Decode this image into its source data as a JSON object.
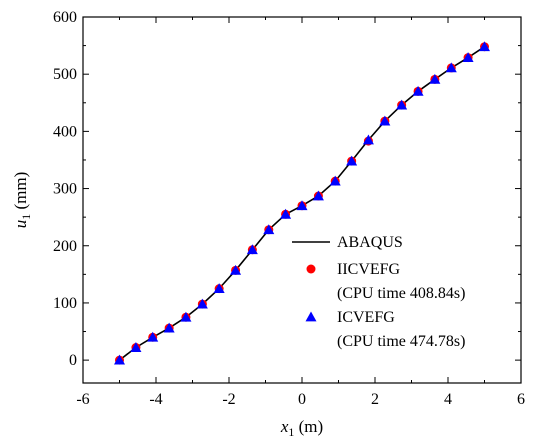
{
  "chart_data": {
    "type": "line",
    "xlabel": {
      "var": "x",
      "sub": "1",
      "unit": " (m)"
    },
    "ylabel": {
      "var": "u",
      "sub": "1",
      "unit": " (mm)"
    },
    "xlim": [
      -6,
      6
    ],
    "ylim": [
      -40,
      600
    ],
    "xticks": [
      -6,
      -4,
      -2,
      0,
      2,
      4,
      6
    ],
    "yticks": [
      0,
      100,
      200,
      300,
      400,
      500,
      600
    ],
    "grid": false,
    "legend_position": "lower-right",
    "legend": [
      {
        "label": "ABAQUS",
        "marker": "line",
        "color": "#000000"
      },
      {
        "label": "IICVEFG",
        "sublabel": "(CPU time 408.84s)",
        "marker": "circle",
        "color": "#ff0000"
      },
      {
        "label": "ICVEFG",
        "sublabel": "(CPU time 474.78s)",
        "marker": "triangle",
        "color": "#0000ff"
      }
    ],
    "series": [
      {
        "name": "ABAQUS",
        "kind": "line",
        "color": "#000000",
        "x": [
          -5,
          -4.55,
          -4.09,
          -3.64,
          -3.18,
          -2.73,
          -2.27,
          -1.82,
          -1.36,
          -0.91,
          -0.45,
          0,
          0.45,
          0.91,
          1.36,
          1.82,
          2.27,
          2.73,
          3.18,
          3.64,
          4.09,
          4.55,
          5
        ],
        "y": [
          0,
          22,
          40,
          56,
          75,
          98,
          125,
          157,
          193,
          228,
          255,
          270,
          287,
          313,
          348,
          385,
          418,
          446,
          470,
          491,
          511,
          529,
          548
        ]
      },
      {
        "name": "IICVEFG",
        "kind": "scatter",
        "marker": "circle",
        "color": "#ff0000",
        "x": [
          -5,
          -4.55,
          -4.09,
          -3.64,
          -3.18,
          -2.73,
          -2.27,
          -1.82,
          -1.36,
          -0.91,
          -0.45,
          0,
          0.45,
          0.91,
          1.36,
          1.82,
          2.27,
          2.73,
          3.18,
          3.64,
          4.09,
          4.55,
          5
        ],
        "y": [
          0,
          22,
          40,
          56,
          75,
          98,
          125,
          157,
          193,
          228,
          255,
          270,
          287,
          313,
          348,
          383,
          418,
          446,
          470,
          491,
          511,
          529,
          548
        ]
      },
      {
        "name": "ICVEFG",
        "kind": "scatter",
        "marker": "triangle",
        "color": "#0000ff",
        "x": [
          -5,
          -4.55,
          -4.09,
          -3.64,
          -3.18,
          -2.73,
          -2.27,
          -1.82,
          -1.36,
          -0.91,
          -0.45,
          0,
          0.45,
          0.91,
          1.36,
          1.82,
          2.27,
          2.73,
          3.18,
          3.64,
          4.09,
          4.55,
          5
        ],
        "y": [
          0,
          22,
          40,
          56,
          75,
          98,
          125,
          157,
          193,
          228,
          255,
          270,
          287,
          313,
          348,
          385,
          418,
          446,
          470,
          491,
          511,
          529,
          548
        ]
      }
    ]
  }
}
